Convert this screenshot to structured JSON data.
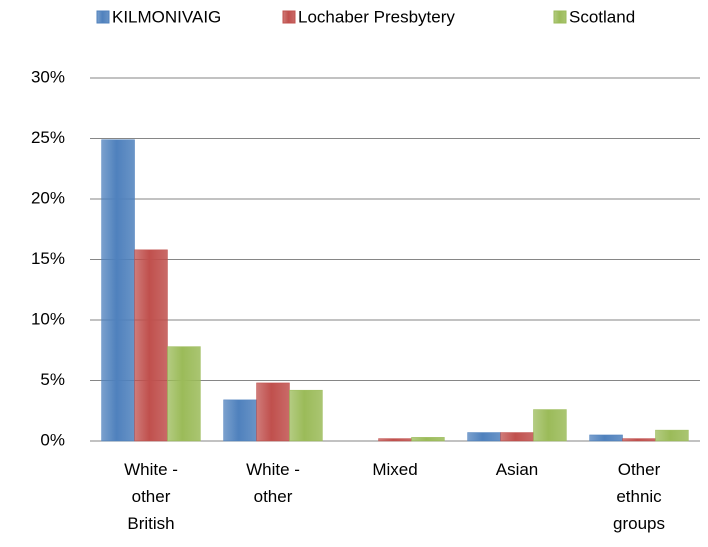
{
  "chart_data": {
    "type": "bar",
    "categories": [
      [
        "White -",
        "other",
        "British"
      ],
      [
        "White -",
        "other"
      ],
      [
        "Mixed"
      ],
      [
        "Asian"
      ],
      [
        "Other",
        "ethnic",
        "groups"
      ]
    ],
    "series": [
      {
        "name": "KILMONIVAIG",
        "color": "#4f81bd",
        "values": [
          24.9,
          3.4,
          0,
          0.7,
          0.5
        ]
      },
      {
        "name": "Lochaber Presbytery",
        "color": "#c0504d",
        "values": [
          15.8,
          4.8,
          0.2,
          0.7,
          0.2
        ]
      },
      {
        "name": "Scotland",
        "color": "#9bbb59",
        "values": [
          7.8,
          4.2,
          0.3,
          2.6,
          0.9
        ]
      }
    ],
    "ylim": [
      0,
      30
    ],
    "yticks": [
      {
        "value": 0,
        "label": "0%"
      },
      {
        "value": 5,
        "label": "5%"
      },
      {
        "value": 10,
        "label": "10%"
      },
      {
        "value": 15,
        "label": "15%"
      },
      {
        "value": 20,
        "label": "20%"
      },
      {
        "value": 25,
        "label": "25%"
      },
      {
        "value": 30,
        "label": "30%"
      }
    ],
    "grid": true,
    "legend": "top"
  }
}
